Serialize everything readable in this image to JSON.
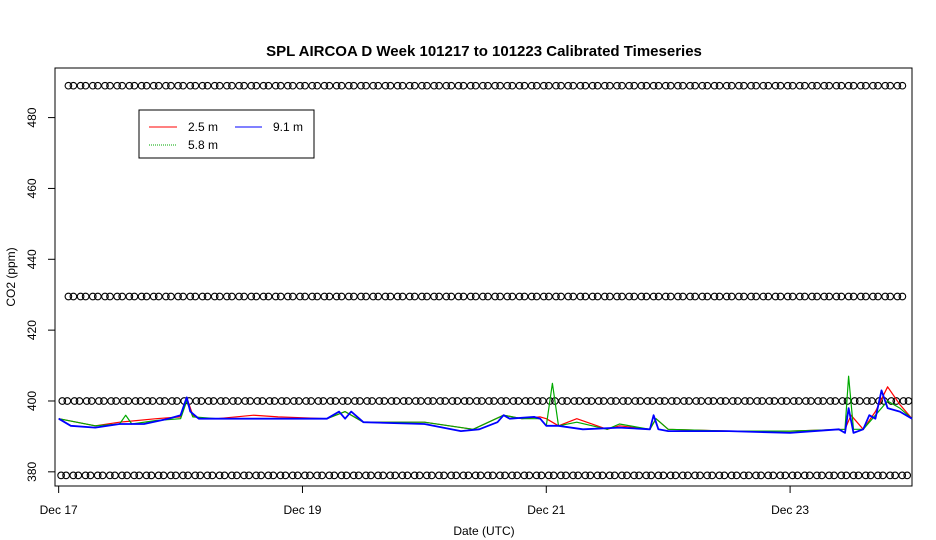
{
  "chart_data": {
    "type": "line",
    "title": "SPL AIRCOA D  Week 101217 to 101223  Calibrated Timeseries",
    "xlabel": "Date (UTC)",
    "ylabel": "CO2 (ppm)",
    "x_ticks": [
      "Dec 17",
      "Dec 19",
      "Dec 21",
      "Dec 23"
    ],
    "y_ticks": [
      380,
      400,
      420,
      440,
      460,
      480
    ],
    "xlim": [
      -0.03,
      7.0
    ],
    "ylim": [
      376,
      494
    ],
    "legend_position": "top-left",
    "colors": {
      "2.5 m": "#ff0000",
      "5.8 m": "#00aa00",
      "9.1 m": "#0000ff"
    },
    "series": [
      {
        "name": "2.5 m",
        "x": [
          0.0,
          0.3,
          0.5,
          0.8,
          1.0,
          1.05,
          1.1,
          1.15,
          1.3,
          1.6,
          1.8,
          2.2,
          2.35,
          2.5,
          3.0,
          3.4,
          3.65,
          3.8,
          3.95,
          4.0,
          4.1,
          4.25,
          4.5,
          4.6,
          4.85,
          4.9,
          5.0,
          5.5,
          6.0,
          6.45,
          6.5,
          6.6,
          6.7,
          6.8,
          6.9,
          7.0
        ],
        "values": [
          395,
          393,
          394,
          395,
          395.5,
          401,
          396,
          395,
          395,
          396,
          395.5,
          395,
          397,
          394,
          394,
          392,
          396,
          395,
          395.5,
          395,
          393,
          395,
          392,
          393,
          392,
          395,
          392,
          391.5,
          391.5,
          392,
          396,
          392,
          397,
          404,
          399,
          395
        ]
      },
      {
        "name": "5.8 m",
        "x": [
          0.0,
          0.3,
          0.5,
          0.55,
          0.6,
          0.8,
          1.0,
          1.05,
          1.1,
          1.3,
          1.6,
          1.8,
          2.2,
          2.35,
          2.5,
          3.0,
          3.4,
          3.65,
          3.8,
          3.95,
          4.0,
          4.05,
          4.1,
          4.25,
          4.5,
          4.6,
          4.85,
          4.9,
          5.0,
          5.5,
          6.0,
          6.45,
          6.48,
          6.52,
          6.6,
          6.7,
          6.8,
          6.9,
          7.0
        ],
        "values": [
          395,
          393,
          393.5,
          396,
          393.5,
          394.5,
          395,
          400,
          395.5,
          395,
          395,
          395,
          395,
          397,
          394,
          394,
          392,
          396,
          395,
          395,
          393,
          405,
          393,
          394,
          392,
          393.5,
          392,
          395,
          392,
          391.5,
          391.5,
          392,
          407,
          392,
          392,
          396,
          400,
          398,
          395
        ]
      },
      {
        "name": "9.1 m",
        "x": [
          0.0,
          0.1,
          0.3,
          0.5,
          0.7,
          0.9,
          1.0,
          1.05,
          1.08,
          1.15,
          1.3,
          1.6,
          1.9,
          2.2,
          2.3,
          2.35,
          2.4,
          2.5,
          3.0,
          3.3,
          3.45,
          3.6,
          3.65,
          3.7,
          3.9,
          3.95,
          4.0,
          4.1,
          4.3,
          4.6,
          4.85,
          4.88,
          4.92,
          5.0,
          5.5,
          6.0,
          6.4,
          6.45,
          6.48,
          6.52,
          6.6,
          6.65,
          6.7,
          6.75,
          6.8,
          6.9,
          7.0
        ],
        "values": [
          395,
          393,
          392.5,
          393.5,
          393.5,
          395,
          396,
          401,
          397,
          395,
          395,
          395,
          395,
          395,
          397,
          395,
          397,
          394,
          393.5,
          391.5,
          392,
          394,
          396,
          395,
          395.5,
          395,
          393,
          393,
          392,
          392.5,
          392,
          396,
          392,
          391.5,
          391.5,
          391,
          392,
          391,
          398,
          391,
          392,
          396,
          395,
          403,
          398,
          397,
          395
        ]
      }
    ],
    "marker_rows": [
      {
        "y": 489,
        "start": 0.08,
        "step": 0.1
      },
      {
        "y": 429.5,
        "start": 0.08,
        "step": 0.1
      },
      {
        "y": 400,
        "start": 0.03,
        "step": 0.1
      },
      {
        "y": 379,
        "start": 0.02,
        "step": 0.1
      }
    ],
    "marker_symbol": "o"
  }
}
